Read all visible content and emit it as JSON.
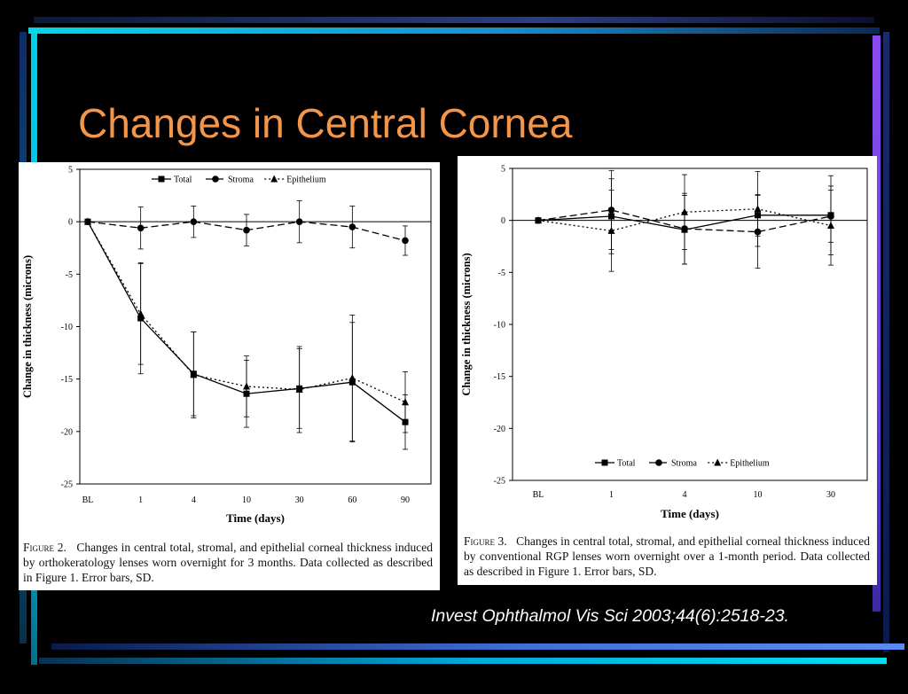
{
  "slide": {
    "title": "Changes in Central Cornea",
    "citation": "Invest Ophthalmol Vis Sci 2003;44(6):2518-23.",
    "title_color": "#f4964a",
    "accent_colors": {
      "cyan": "#00d8e8",
      "blue": "#3f6fd8",
      "violet": "#8a4cf0"
    }
  },
  "chart_data": [
    {
      "type": "line",
      "xlabel": "Time (days)",
      "ylabel": "Change in thickness (microns)",
      "categories": [
        "BL",
        "1",
        "4",
        "10",
        "30",
        "60",
        "90"
      ],
      "yticks": [
        "5",
        "0",
        "-5",
        "-10",
        "-15",
        "-20",
        "-25"
      ],
      "ylim": [
        -25,
        5
      ],
      "legend_position": "top",
      "series": [
        {
          "name": "Total",
          "marker": "square",
          "dash": "solid",
          "values": [
            0,
            -9.2,
            -14.5,
            -16.4,
            -15.9,
            -15.3,
            -19.1
          ],
          "errors": [
            0,
            5.3,
            4.0,
            3.2,
            3.8,
            5.7,
            2.6
          ]
        },
        {
          "name": "Stroma",
          "marker": "circle",
          "dash": "dashed",
          "values": [
            0,
            -0.6,
            0.0,
            -0.8,
            0.0,
            -0.5,
            -1.8
          ],
          "errors": [
            0,
            2.0,
            1.5,
            1.5,
            2.0,
            2.0,
            1.4
          ]
        },
        {
          "name": "Epithelium",
          "marker": "triangle",
          "dash": "dotted",
          "values": [
            0,
            -8.8,
            -14.6,
            -15.7,
            -16.0,
            -14.9,
            -17.2
          ],
          "errors": [
            0,
            4.8,
            4.1,
            2.9,
            4.1,
            6.0,
            2.9
          ]
        }
      ],
      "caption_label": "Figure 2.",
      "caption_text": "Changes in central total, stromal, and epithelial corneal thickness induced by orthokeratology lenses worn overnight for 3 months. Data collected as described in Figure 1. Error bars, SD."
    },
    {
      "type": "line",
      "xlabel": "Time (days)",
      "ylabel": "Change in thickness (microns)",
      "categories": [
        "BL",
        "1",
        "4",
        "10",
        "30"
      ],
      "yticks": [
        "5",
        "0",
        "-5",
        "-10",
        "-15",
        "-20",
        "-25"
      ],
      "ylim": [
        -25,
        5
      ],
      "legend_position": "bottom",
      "series": [
        {
          "name": "Total",
          "marker": "square",
          "dash": "solid",
          "values": [
            0,
            0.4,
            -0.9,
            0.5,
            0.5
          ],
          "errors": [
            0,
            3.6,
            3.3,
            2.0,
            3.8
          ]
        },
        {
          "name": "Stroma",
          "marker": "circle",
          "dash": "dashed",
          "values": [
            0,
            1.0,
            -0.8,
            -1.1,
            0.4
          ],
          "errors": [
            0,
            3.8,
            3.4,
            3.5,
            2.5
          ]
        },
        {
          "name": "Epithelium",
          "marker": "triangle",
          "dash": "dotted",
          "values": [
            0,
            -1.0,
            0.8,
            1.1,
            -0.5
          ],
          "errors": [
            0,
            3.9,
            3.6,
            3.6,
            3.8
          ]
        }
      ],
      "caption_label": "Figure 3.",
      "caption_text": "Changes in central total, stromal, and epithelial corneal thickness induced by conventional RGP lenses worn overnight over a 1-month period. Data collected as described in Figure 1. Error bars, SD."
    }
  ]
}
